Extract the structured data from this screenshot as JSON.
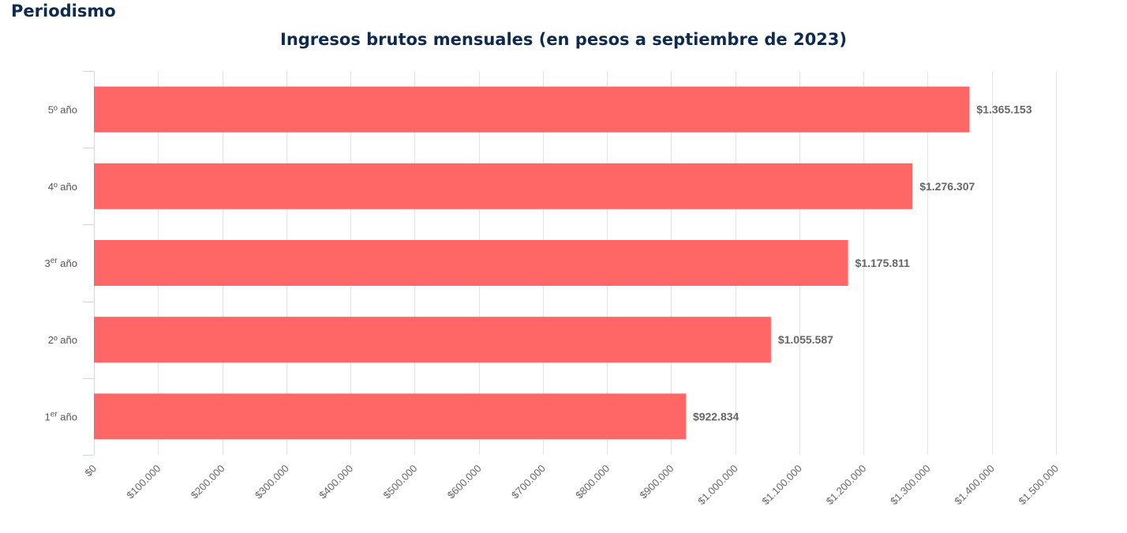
{
  "page": {
    "heading": "Periodismo"
  },
  "chart_data": {
    "type": "bar",
    "orientation": "horizontal",
    "title": "Ingresos brutos mensuales (en pesos a septiembre de 2023)",
    "xlabel": "",
    "ylabel": "",
    "categories": [
      {
        "base": "5º año",
        "sup": ""
      },
      {
        "base": "4º año",
        "sup": ""
      },
      {
        "base": "3",
        "sup": "er",
        "rest": " año"
      },
      {
        "base": "2º año",
        "sup": ""
      },
      {
        "base": "1",
        "sup": "er",
        "rest": " año"
      }
    ],
    "values": [
      1365153,
      1276307,
      1175811,
      1055587,
      922834
    ],
    "data_labels": [
      "$1.365.153",
      "$1.276.307",
      "$1.175.811",
      "$1.055.587",
      "$922.834"
    ],
    "xlim": [
      0,
      1500000
    ],
    "x_ticks": [
      0,
      100000,
      200000,
      300000,
      400000,
      500000,
      600000,
      700000,
      800000,
      900000,
      1000000,
      1100000,
      1200000,
      1300000,
      1400000,
      1500000
    ],
    "x_tick_labels": [
      "$0",
      "$100.000",
      "$200.000",
      "$300.000",
      "$400.000",
      "$500.000",
      "$600.000",
      "$700.000",
      "$800.000",
      "$900.000",
      "$1.000.000",
      "$1.100.000",
      "$1.200.000",
      "$1.300.000",
      "$1.400.000",
      "$1.500.000"
    ],
    "bar_color": "#ff6666",
    "grid": true,
    "grid_color": "#e3e3e3",
    "axis_color": "#ccd6eb",
    "legend": "none"
  }
}
